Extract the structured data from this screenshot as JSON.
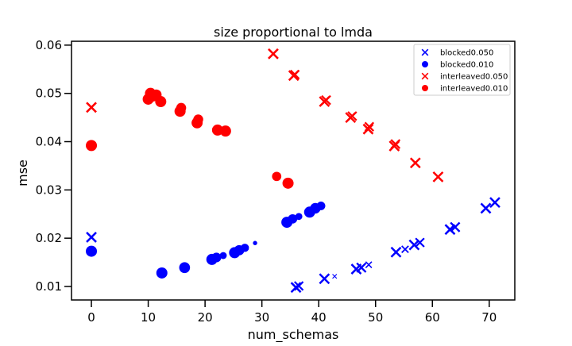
{
  "chart_data": {
    "type": "scatter",
    "title": "size proportional to lmda",
    "xlabel": "num_schemas",
    "ylabel": "mse",
    "xlim": [
      -3.5,
      74.5
    ],
    "ylim": [
      0.0072,
      0.0608
    ],
    "xticks": [
      0,
      10,
      20,
      30,
      40,
      50,
      60,
      70
    ],
    "yticks": [
      0.01,
      0.02,
      0.03,
      0.04,
      0.05,
      0.06
    ],
    "xtick_labels": [
      "0",
      "10",
      "20",
      "30",
      "40",
      "50",
      "60",
      "70"
    ],
    "ytick_labels": [
      "0.01",
      "0.02",
      "0.03",
      "0.04",
      "0.05",
      "0.06"
    ],
    "grid": false,
    "legend_position": "top-right",
    "series": [
      {
        "name": "blocked0.050",
        "marker": "x",
        "color": "#0000ff",
        "points": [
          {
            "x": 0,
            "y": 0.0202,
            "s": 1.0
          },
          {
            "x": 36.0,
            "y": 0.0098,
            "s": 1.0
          },
          {
            "x": 36.5,
            "y": 0.0101,
            "s": 0.8
          },
          {
            "x": 41.0,
            "y": 0.0116,
            "s": 1.0
          },
          {
            "x": 42.8,
            "y": 0.0121,
            "s": 0.2
          },
          {
            "x": 46.6,
            "y": 0.0136,
            "s": 1.0
          },
          {
            "x": 47.5,
            "y": 0.0139,
            "s": 0.9
          },
          {
            "x": 48.8,
            "y": 0.0145,
            "s": 0.4
          },
          {
            "x": 53.6,
            "y": 0.0171,
            "s": 1.0
          },
          {
            "x": 55.2,
            "y": 0.0177,
            "s": 0.5
          },
          {
            "x": 56.8,
            "y": 0.0186,
            "s": 1.0
          },
          {
            "x": 57.8,
            "y": 0.0191,
            "s": 0.8
          },
          {
            "x": 63.1,
            "y": 0.0218,
            "s": 1.0
          },
          {
            "x": 64.0,
            "y": 0.0223,
            "s": 0.9
          },
          {
            "x": 69.4,
            "y": 0.0262,
            "s": 1.0
          },
          {
            "x": 71.0,
            "y": 0.0274,
            "s": 1.0
          }
        ]
      },
      {
        "name": "blocked0.010",
        "marker": "o",
        "color": "#0000ff",
        "points": [
          {
            "x": 0,
            "y": 0.0173,
            "s": 1.0
          },
          {
            "x": 12.4,
            "y": 0.0128,
            "s": 1.0
          },
          {
            "x": 16.4,
            "y": 0.0139,
            "s": 0.95
          },
          {
            "x": 21.2,
            "y": 0.0156,
            "s": 1.0
          },
          {
            "x": 22.0,
            "y": 0.016,
            "s": 0.75
          },
          {
            "x": 23.2,
            "y": 0.0164,
            "s": 0.4
          },
          {
            "x": 25.2,
            "y": 0.017,
            "s": 1.0
          },
          {
            "x": 26.0,
            "y": 0.0175,
            "s": 0.85
          },
          {
            "x": 27.0,
            "y": 0.018,
            "s": 0.55
          },
          {
            "x": 28.8,
            "y": 0.019,
            "s": 0.15
          },
          {
            "x": 34.4,
            "y": 0.0233,
            "s": 1.0
          },
          {
            "x": 35.4,
            "y": 0.024,
            "s": 0.7
          },
          {
            "x": 36.5,
            "y": 0.0245,
            "s": 0.4
          },
          {
            "x": 38.4,
            "y": 0.0254,
            "s": 1.0
          },
          {
            "x": 39.4,
            "y": 0.0262,
            "s": 0.9
          },
          {
            "x": 40.4,
            "y": 0.0267,
            "s": 0.6
          }
        ]
      },
      {
        "name": "interleaved0.050",
        "marker": "x",
        "color": "#ff0000",
        "points": [
          {
            "x": 0,
            "y": 0.0471,
            "s": 1.0
          },
          {
            "x": 32.0,
            "y": 0.0582,
            "s": 1.0
          },
          {
            "x": 35.6,
            "y": 0.0537,
            "s": 1.0
          },
          {
            "x": 35.8,
            "y": 0.0539,
            "s": 0.8
          },
          {
            "x": 41.0,
            "y": 0.0483,
            "s": 1.0
          },
          {
            "x": 41.3,
            "y": 0.0486,
            "s": 0.85
          },
          {
            "x": 45.6,
            "y": 0.045,
            "s": 1.0
          },
          {
            "x": 45.9,
            "y": 0.0453,
            "s": 0.8
          },
          {
            "x": 48.7,
            "y": 0.0426,
            "s": 1.0
          },
          {
            "x": 48.9,
            "y": 0.0431,
            "s": 0.8
          },
          {
            "x": 53.3,
            "y": 0.0391,
            "s": 1.0
          },
          {
            "x": 53.5,
            "y": 0.0395,
            "s": 0.85
          },
          {
            "x": 57.0,
            "y": 0.0356,
            "s": 1.0
          },
          {
            "x": 61.0,
            "y": 0.0327,
            "s": 1.0
          }
        ]
      },
      {
        "name": "interleaved0.010",
        "marker": "o",
        "color": "#ff0000",
        "points": [
          {
            "x": 0,
            "y": 0.0392,
            "s": 1.0
          },
          {
            "x": 10.0,
            "y": 0.0488,
            "s": 1.0
          },
          {
            "x": 10.4,
            "y": 0.05,
            "s": 1.0
          },
          {
            "x": 10.8,
            "y": 0.0494,
            "s": 0.9
          },
          {
            "x": 11.4,
            "y": 0.0497,
            "s": 0.95
          },
          {
            "x": 12.2,
            "y": 0.0483,
            "s": 1.0
          },
          {
            "x": 15.6,
            "y": 0.0463,
            "s": 1.0
          },
          {
            "x": 15.8,
            "y": 0.047,
            "s": 0.8
          },
          {
            "x": 18.6,
            "y": 0.0439,
            "s": 1.0
          },
          {
            "x": 18.8,
            "y": 0.0446,
            "s": 0.8
          },
          {
            "x": 22.2,
            "y": 0.0424,
            "s": 1.0
          },
          {
            "x": 23.6,
            "y": 0.0422,
            "s": 1.0
          },
          {
            "x": 32.6,
            "y": 0.0328,
            "s": 0.7
          },
          {
            "x": 34.6,
            "y": 0.0314,
            "s": 1.0
          }
        ]
      }
    ]
  }
}
